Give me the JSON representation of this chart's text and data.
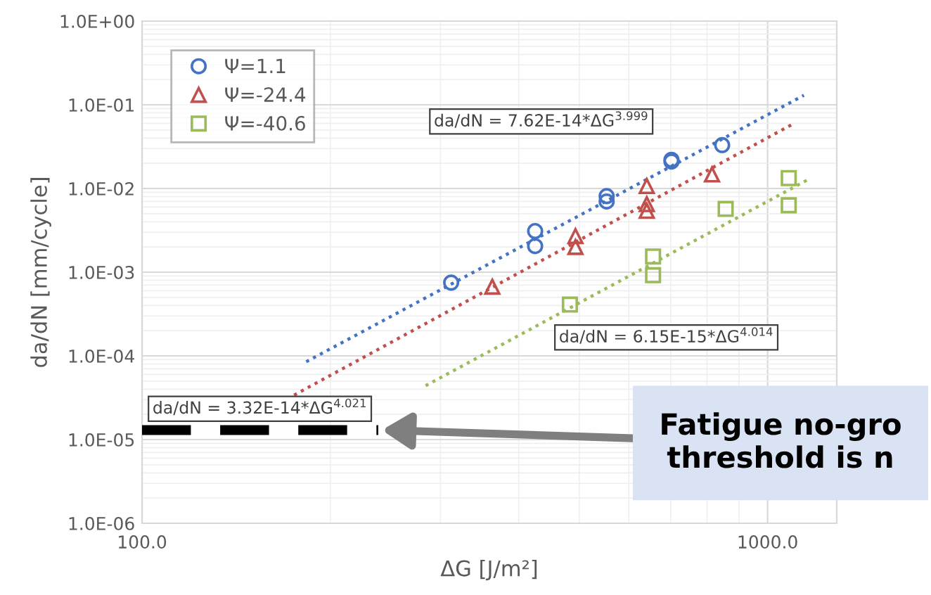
{
  "chart_data": {
    "type": "scatter",
    "xlabel": "ΔG [J/m²]",
    "ylabel": "da/dN [mm/cycle]",
    "log": "xy",
    "grid": true,
    "legend": "top left",
    "xlim": [
      100,
      1290
    ],
    "xticks": [
      {
        "value": 100,
        "label": "100.0"
      },
      {
        "value": 1000,
        "label": "1000.0"
      }
    ],
    "ylim": [
      1e-06,
      1
    ],
    "yticks": [
      {
        "value": 1e-06,
        "label": "1.0E-06"
      },
      {
        "value": 1e-05,
        "label": "1.0E-05"
      },
      {
        "value": 0.0001,
        "label": "1.0E-04"
      },
      {
        "value": 0.001,
        "label": "1.0E-03"
      },
      {
        "value": 0.01,
        "label": "1.0E-02"
      },
      {
        "value": 0.1,
        "label": "1.0E-01"
      },
      {
        "value": 1,
        "label": "1.0E+00"
      }
    ],
    "series": [
      {
        "name": "Ψ=1.1",
        "color": "#4472c4",
        "marker": "circle",
        "x": [
          312,
          425,
          425,
          553,
          553,
          702,
          702,
          846
        ],
        "values": [
          0.00075,
          0.0031,
          0.00205,
          0.0081,
          0.007,
          0.022,
          0.021,
          0.033
        ]
      },
      {
        "name": "Ψ=-24.4",
        "color": "#c0504d",
        "marker": "triangle",
        "x": [
          363,
          493,
          493,
          641,
          641,
          641,
          815
        ],
        "values": [
          0.00067,
          0.0027,
          0.002,
          0.0107,
          0.0065,
          0.0054,
          0.0147
        ]
      },
      {
        "name": "Ψ=-40.6",
        "color": "#9bbb59",
        "marker": "square",
        "x": [
          483,
          656,
          656,
          857,
          1081,
          1081
        ],
        "values": [
          0.00041,
          0.00154,
          0.00092,
          0.0057,
          0.0133,
          0.0063
        ]
      },
      {
        "type": "line",
        "color": "#4472c4",
        "line_style": "dotted",
        "marker": "none",
        "x": [
          183,
          1143
        ],
        "values": [
          8.5e-05,
          0.13
        ]
      },
      {
        "type": "line",
        "color": "#c0504d",
        "line_style": "dotted",
        "marker": "none",
        "x": [
          175,
          1107
        ],
        "values": [
          3.4e-05,
          0.061
        ]
      },
      {
        "type": "line",
        "color": "#9bbb59",
        "line_style": "dotted",
        "marker": "none",
        "x": [
          284,
          1172
        ],
        "values": [
          4.4e-05,
          0.0133
        ]
      }
    ],
    "ref_lines": [
      {
        "axis": "y",
        "value": 1.3e-05,
        "color": "#000000",
        "line_style": "dashed"
      }
    ],
    "annotations": [
      "da/dN = 7.62E-14*ΔG$^{3.999}$",
      "da/dN = 6.15E-15*ΔG$^{4.014}$",
      "da/dN = 3.32E-14*ΔG$^{4.021}$",
      "Fatigue no-gro\nthreshold is n"
    ]
  }
}
